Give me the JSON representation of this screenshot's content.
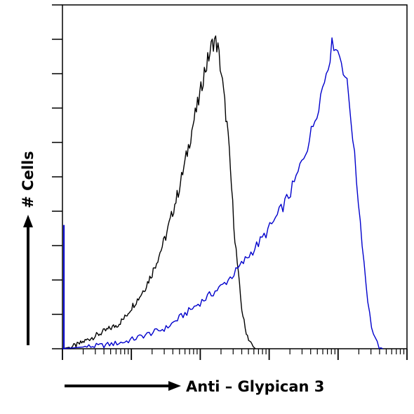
{
  "chart_data": {
    "type": "line",
    "title": "",
    "xlabel": "Anti – Glypican 3",
    "ylabel": "# Cells",
    "x_scale": "log",
    "xlim": [
      1,
      100000
    ],
    "ylim": [
      0,
      100
    ],
    "grid": false,
    "legend": "none",
    "series": [
      {
        "color": "#000000",
        "points": [
          [
            1.0,
            0
          ],
          [
            1.3,
            0.5
          ],
          [
            1.6,
            1
          ],
          [
            2.0,
            2
          ],
          [
            2.5,
            3
          ],
          [
            3.2,
            4
          ],
          [
            4.0,
            5
          ],
          [
            5.0,
            6
          ],
          [
            6.3,
            7
          ],
          [
            8.0,
            9
          ],
          [
            10,
            12
          ],
          [
            13,
            15
          ],
          [
            16,
            18
          ],
          [
            20,
            22
          ],
          [
            25,
            27
          ],
          [
            32,
            33
          ],
          [
            40,
            40
          ],
          [
            50,
            47
          ],
          [
            63,
            56
          ],
          [
            80,
            66
          ],
          [
            100,
            74
          ],
          [
            112,
            80
          ],
          [
            126,
            83
          ],
          [
            141,
            87
          ],
          [
            159,
            90
          ],
          [
            178,
            88
          ],
          [
            200,
            81
          ],
          [
            224,
            72
          ],
          [
            251,
            63
          ],
          [
            282,
            48
          ],
          [
            316,
            33
          ],
          [
            355,
            22
          ],
          [
            398,
            12
          ],
          [
            447,
            6
          ],
          [
            501,
            3
          ],
          [
            562,
            1
          ],
          [
            631,
            0
          ]
        ]
      },
      {
        "color": "#0000cc",
        "points": [
          [
            1.0,
            0
          ],
          [
            2.0,
            0.5
          ],
          [
            4.0,
            1
          ],
          [
            8.0,
            2
          ],
          [
            16,
            4
          ],
          [
            32,
            6
          ],
          [
            50,
            9
          ],
          [
            80,
            12
          ],
          [
            126,
            15
          ],
          [
            200,
            18
          ],
          [
            316,
            22
          ],
          [
            501,
            27
          ],
          [
            794,
            32
          ],
          [
            1259,
            38
          ],
          [
            1995,
            45
          ],
          [
            2512,
            50
          ],
          [
            3162,
            56
          ],
          [
            3981,
            62
          ],
          [
            5012,
            70
          ],
          [
            6310,
            78
          ],
          [
            7079,
            83
          ],
          [
            7943,
            87
          ],
          [
            8913,
            90
          ],
          [
            10000,
            86
          ],
          [
            11220,
            84
          ],
          [
            12589,
            80
          ],
          [
            14125,
            74
          ],
          [
            15849,
            65
          ],
          [
            17783,
            53
          ],
          [
            19953,
            42
          ],
          [
            22387,
            31
          ],
          [
            25119,
            20
          ],
          [
            28184,
            11
          ],
          [
            31623,
            5
          ],
          [
            35481,
            2
          ],
          [
            39811,
            0.5
          ],
          [
            44668,
            0
          ]
        ]
      }
    ],
    "left_edge_spike": {
      "x": 1.05,
      "y": 36,
      "color": "#0000cc"
    }
  }
}
